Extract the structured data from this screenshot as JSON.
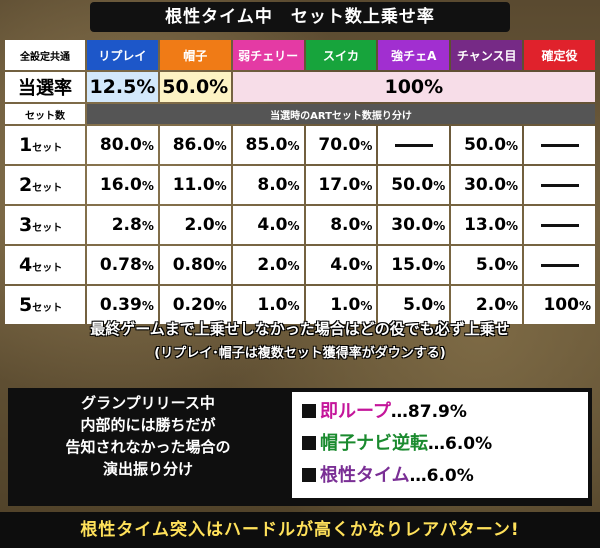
{
  "title": "根性タイム中　セット数上乗せ率",
  "header": {
    "corner": "全設定共通",
    "roles": [
      {
        "label": "リプレイ",
        "color": "#1d57c9"
      },
      {
        "label": "帽子",
        "color": "#f07b16"
      },
      {
        "label": "弱チェリー",
        "color": "#e43aa4"
      },
      {
        "label": "スイカ",
        "color": "#17a43c"
      },
      {
        "label": "強チェA",
        "color": "#a12fd0"
      },
      {
        "label": "チャンス目",
        "color": "#762a86"
      },
      {
        "label": "確定役",
        "color": "#e0222c"
      }
    ]
  },
  "rate_row": {
    "label": "当選率",
    "replay": "12.5%",
    "hat": "50.0%",
    "others": "100%",
    "replay_bg": "#d3e8fb",
    "hat_bg": "#fdf3c4",
    "others_bg": "#f7dde8"
  },
  "sub_row": {
    "label": "セット数",
    "bar": "当選時のARTセット数振り分け"
  },
  "set_rows": [
    {
      "num": "1",
      "unit": "セット",
      "values": [
        [
          "80.0",
          "%"
        ],
        [
          "86.0",
          "%"
        ],
        [
          "85.0",
          "%"
        ],
        [
          "70.0",
          "%"
        ],
        null,
        [
          "50.0",
          "%"
        ],
        null
      ]
    },
    {
      "num": "2",
      "unit": "セット",
      "values": [
        [
          "16.0",
          "%"
        ],
        [
          "11.0",
          "%"
        ],
        [
          "8.0",
          "%"
        ],
        [
          "17.0",
          "%"
        ],
        [
          "50.0",
          "%"
        ],
        [
          "30.0",
          "%"
        ],
        null
      ]
    },
    {
      "num": "3",
      "unit": "セット",
      "values": [
        [
          "2.8",
          "%"
        ],
        [
          "2.0",
          "%"
        ],
        [
          "4.0",
          "%"
        ],
        [
          "8.0",
          "%"
        ],
        [
          "30.0",
          "%"
        ],
        [
          "13.0",
          "%"
        ],
        null
      ]
    },
    {
      "num": "4",
      "unit": "セット",
      "values": [
        [
          "0.78",
          "%"
        ],
        [
          "0.80",
          "%"
        ],
        [
          "2.0",
          "%"
        ],
        [
          "4.0",
          "%"
        ],
        [
          "15.0",
          "%"
        ],
        [
          "5.0",
          "%"
        ],
        null
      ]
    },
    {
      "num": "5",
      "unit": "セット",
      "values": [
        [
          "0.39",
          "%"
        ],
        [
          "0.20",
          "%"
        ],
        [
          "1.0",
          "%"
        ],
        [
          "1.0",
          "%"
        ],
        [
          "5.0",
          "%"
        ],
        [
          "2.0",
          "%"
        ],
        [
          "100",
          "%"
        ]
      ]
    }
  ],
  "note1": "最終ゲームまで上乗せしなかった場合はどの役でも必ず上乗せ",
  "note2": "(リプレイ･帽子は複数セット獲得率がダウンする)",
  "grand_prix": {
    "lines": [
      "グランプリリース中",
      "内部的には勝ちだが",
      "告知されなかった場合の",
      "演出振り分け"
    ]
  },
  "results": [
    {
      "label": "即ループ",
      "value": "…87.9%",
      "color": "#c4159a"
    },
    {
      "label": "帽子ナビ逆転",
      "value": "…6.0%",
      "color": "#1a8a2e"
    },
    {
      "label": "根性タイム",
      "value": "…6.0%",
      "color": "#7a2f95"
    }
  ],
  "bottom": "根性タイム突入はハードルが高くかなりレアパターン!"
}
